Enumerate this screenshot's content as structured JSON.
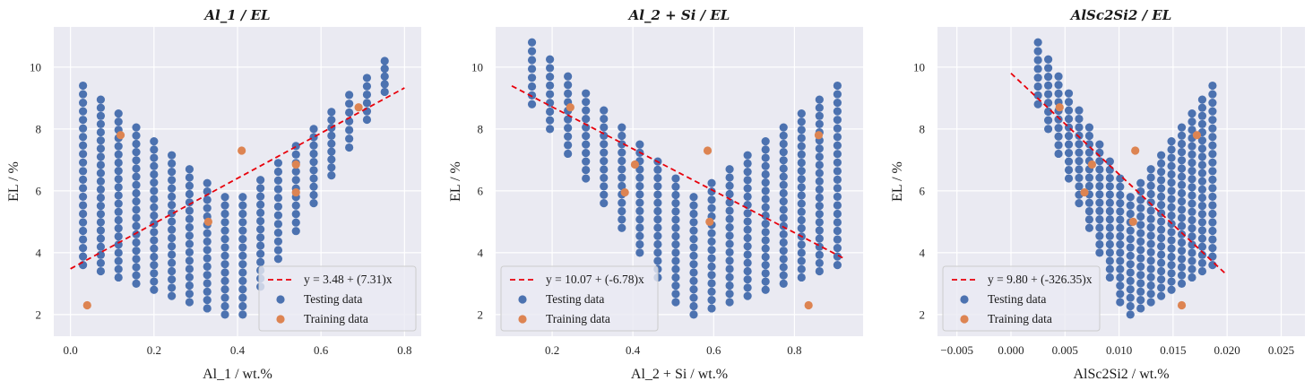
{
  "chart_data": [
    {
      "type": "scatter",
      "title": "Al_1 / EL",
      "xlabel": "Al_1 / wt.%",
      "ylabel": "EL / %",
      "xlim": [
        -0.04,
        0.84
      ],
      "ylim": [
        1.3,
        11.3
      ],
      "xticks": [
        "0.0",
        "0.2",
        "0.4",
        "0.6",
        "0.8"
      ],
      "xtick_values": [
        0.0,
        0.2,
        0.4,
        0.6,
        0.8
      ],
      "yticks": [
        "2",
        "4",
        "6",
        "8",
        "10"
      ],
      "ytick_values": [
        2,
        4,
        6,
        8,
        10
      ],
      "grid": true,
      "legend_position": "bottom-right",
      "fit": {
        "label": "y = 3.48 + (7.31)x",
        "intercept": 3.48,
        "slope": 7.31,
        "x_range": [
          0.0,
          0.8
        ]
      },
      "testing_pattern": {
        "x_start": 0.03,
        "x_step": 0.0425,
        "count": 18,
        "y_top_start": 9.4,
        "y_top_step": 0.08,
        "y_bottom_start": 3.6,
        "y_bottom_end": 10.3,
        "v_x": 0.13,
        "v_y": 1.8
      },
      "series": [
        {
          "name": "Testing data",
          "color": "#4c72b0",
          "points": []
        },
        {
          "name": "Training data",
          "color": "#dd8452",
          "points": [
            [
              0.04,
              2.3
            ],
            [
              0.12,
              7.8
            ],
            [
              0.33,
              5.0
            ],
            [
              0.41,
              7.3
            ],
            [
              0.54,
              5.95
            ],
            [
              0.54,
              6.85
            ],
            [
              0.69,
              8.7
            ]
          ]
        }
      ]
    },
    {
      "type": "scatter",
      "title": "Al_2 + Si / EL",
      "xlabel": "Al_2 + Si / wt.%",
      "ylabel": "EL / %",
      "xlim": [
        0.06,
        0.97
      ],
      "ylim": [
        1.3,
        11.3
      ],
      "xticks": [
        "0.2",
        "0.4",
        "0.6",
        "0.8"
      ],
      "xtick_values": [
        0.2,
        0.4,
        0.6,
        0.8
      ],
      "yticks": [
        "2",
        "4",
        "6",
        "8",
        "10"
      ],
      "ytick_values": [
        2,
        4,
        6,
        8,
        10
      ],
      "grid": true,
      "legend_position": "bottom-left",
      "fit": {
        "label": "y = 10.07 + (-6.78)x",
        "intercept": 10.07,
        "slope": -6.78,
        "x_range": [
          0.1,
          0.92
        ]
      },
      "testing_pattern": {
        "x_start": 0.15,
        "x_step": 0.0445,
        "count": 18,
        "v_x": 0.75,
        "v_y": 1.8
      },
      "series": [
        {
          "name": "Testing data",
          "color": "#4c72b0",
          "points": []
        },
        {
          "name": "Training data",
          "color": "#dd8452",
          "points": [
            [
              0.245,
              8.7
            ],
            [
              0.38,
              5.95
            ],
            [
              0.405,
              6.85
            ],
            [
              0.59,
              5.0
            ],
            [
              0.585,
              7.3
            ],
            [
              0.835,
              2.3
            ],
            [
              0.86,
              7.8
            ]
          ]
        }
      ]
    },
    {
      "type": "scatter",
      "title": "AlSc2Si2 / EL",
      "xlabel": "AlSc2Si2 / wt.%",
      "ylabel": "EL / %",
      "xlim": [
        -0.0068,
        0.0272
      ],
      "ylim": [
        1.3,
        11.3
      ],
      "xticks": [
        "−0.005",
        "0.000",
        "0.005",
        "0.010",
        "0.015",
        "0.020",
        "0.025"
      ],
      "xtick_values": [
        -0.005,
        0.0,
        0.005,
        0.01,
        0.015,
        0.02,
        0.025
      ],
      "yticks": [
        "2",
        "4",
        "6",
        "8",
        "10"
      ],
      "ytick_values": [
        2,
        4,
        6,
        8,
        10
      ],
      "grid": true,
      "legend_position": "bottom-left",
      "fit": {
        "label": "y = 9.80 + (-326.35)x",
        "intercept": 9.8,
        "slope": -326.35,
        "x_range": [
          0.0,
          0.02
        ]
      },
      "testing_pattern": {
        "x_start": 0.0025,
        "x_step": 0.00095,
        "count": 18,
        "v_x": 0.0145,
        "v_y": 1.8
      },
      "series": [
        {
          "name": "Testing data",
          "color": "#4c72b0",
          "points": []
        },
        {
          "name": "Training data",
          "color": "#dd8452",
          "points": [
            [
              0.0045,
              8.7
            ],
            [
              0.0068,
              5.95
            ],
            [
              0.0075,
              6.85
            ],
            [
              0.0113,
              5.0
            ],
            [
              0.0115,
              7.3
            ],
            [
              0.0158,
              2.3
            ],
            [
              0.0172,
              7.8
            ]
          ]
        }
      ]
    }
  ]
}
